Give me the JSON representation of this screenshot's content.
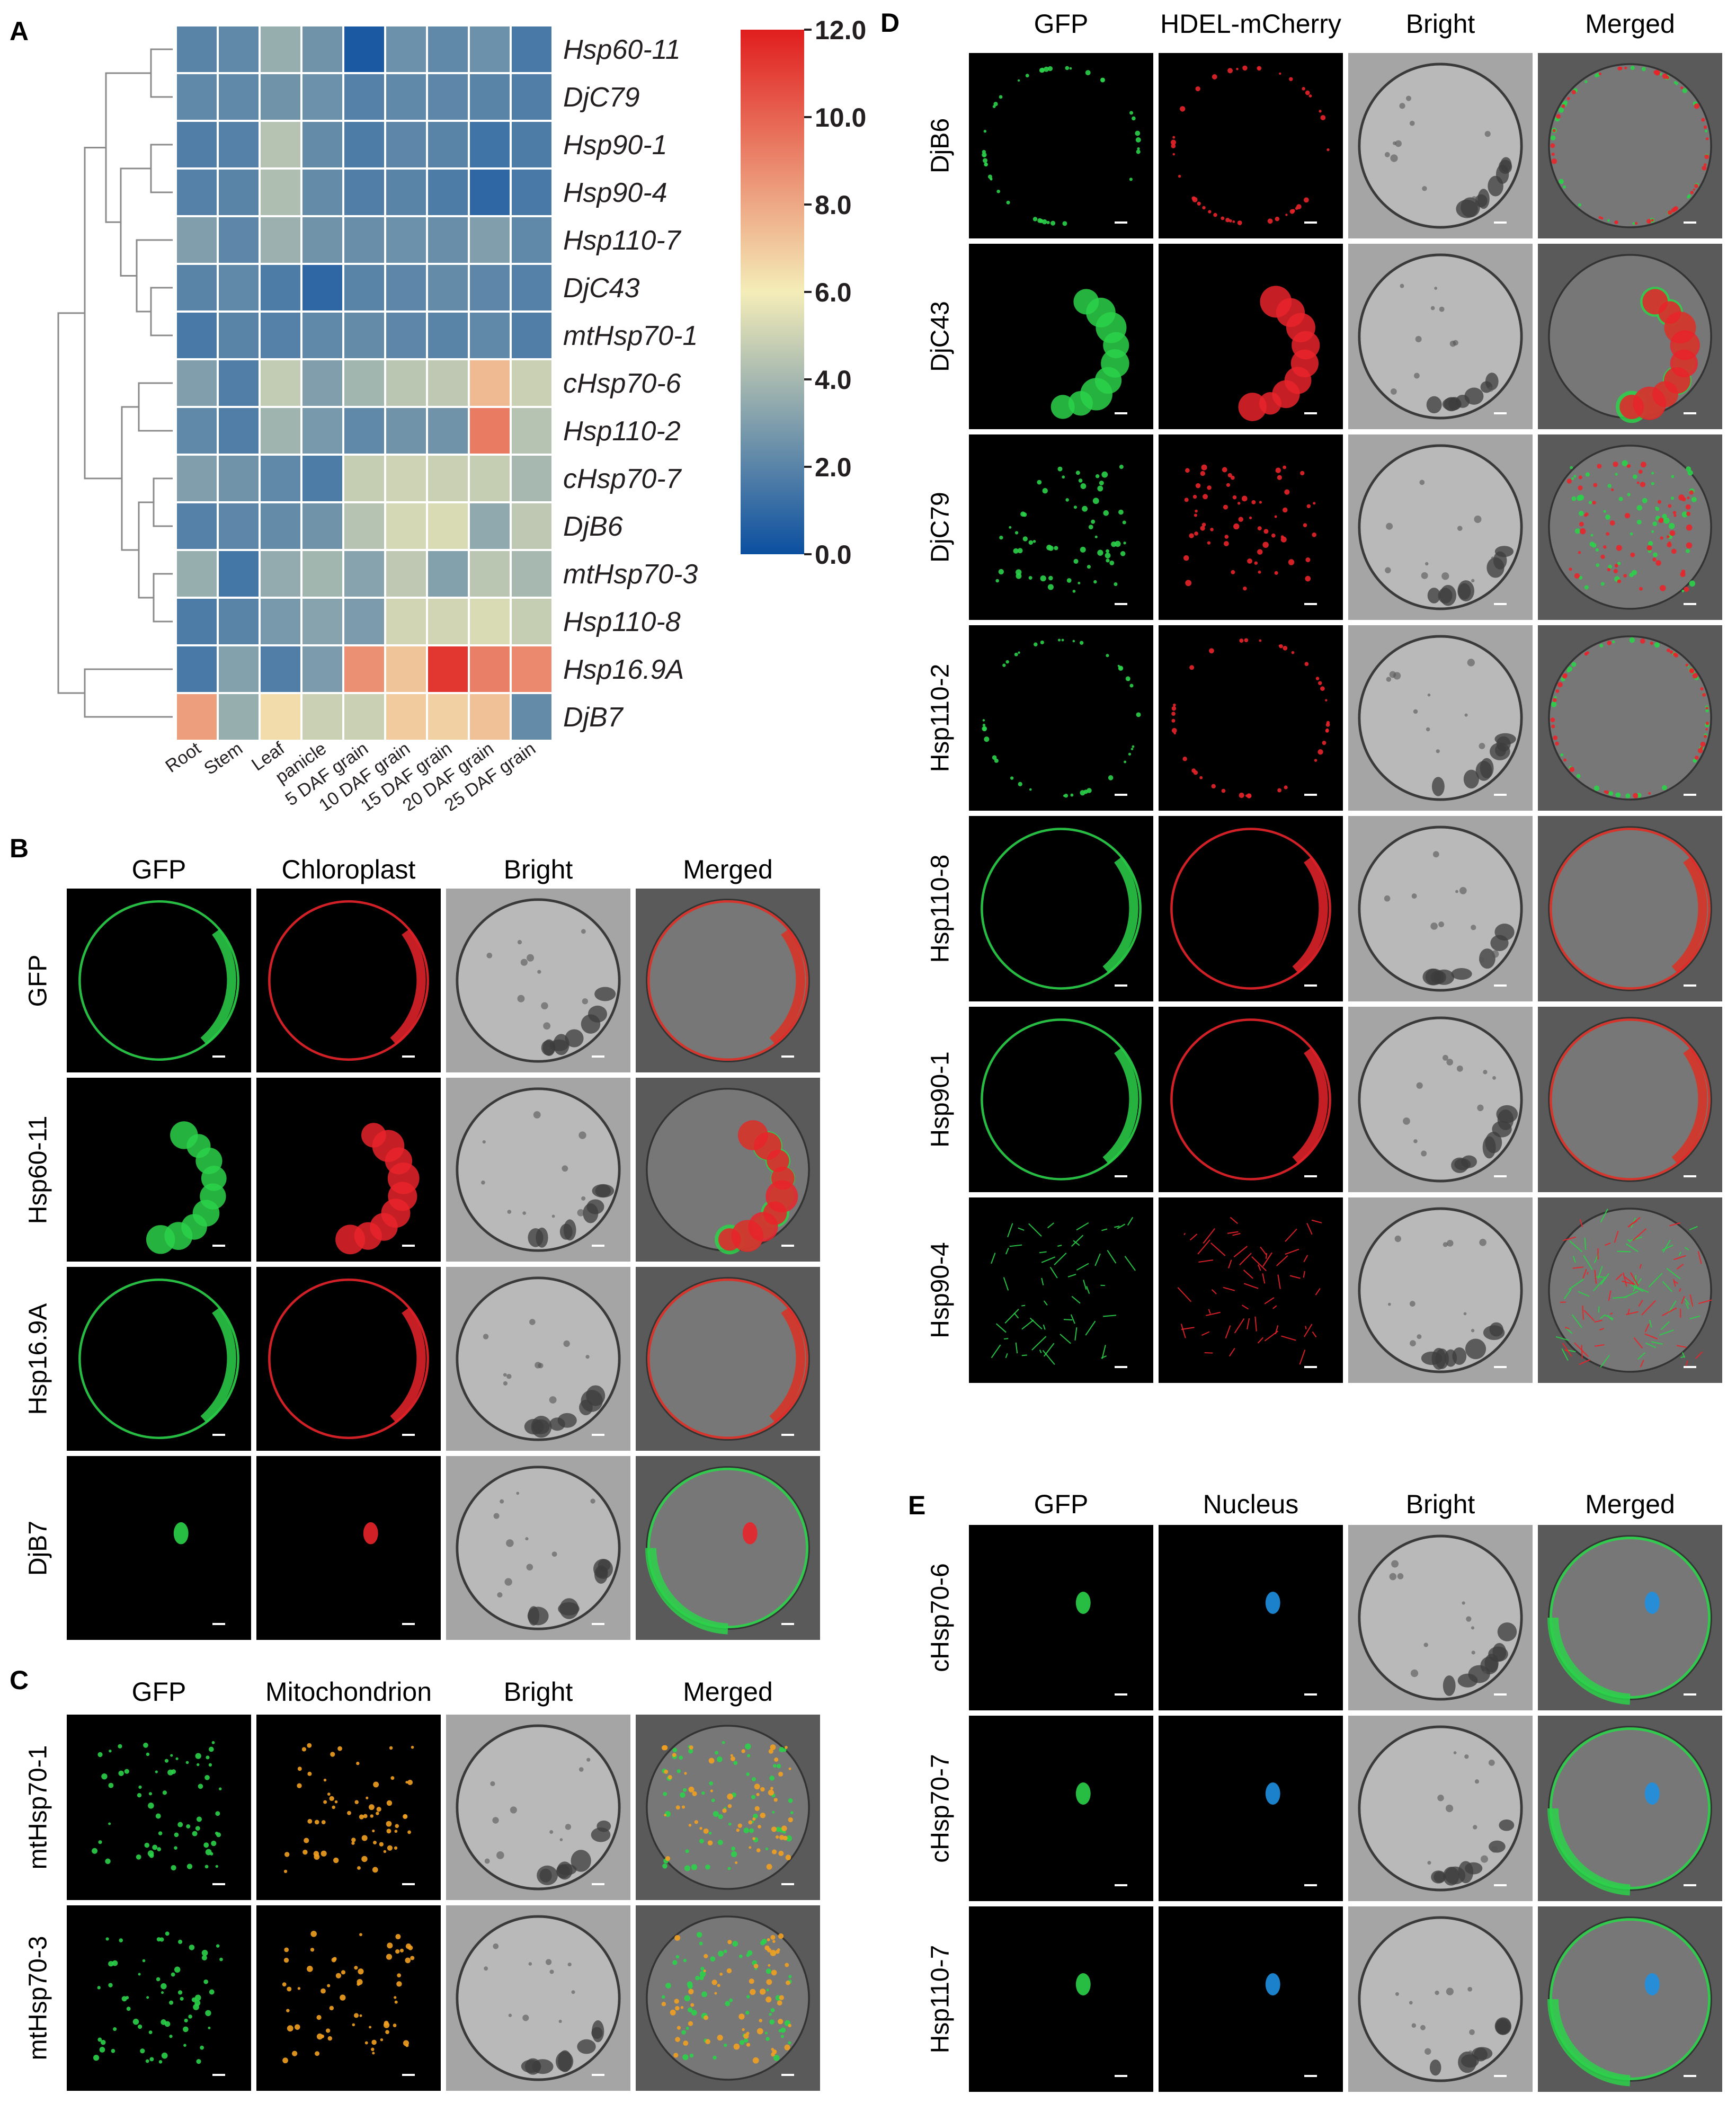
{
  "panels": {
    "A": {
      "letter": "A",
      "genes": [
        "Hsp60-11",
        "DjC79",
        "Hsp90-1",
        "Hsp90-4",
        "Hsp110-7",
        "DjC43",
        "mtHsp70-1",
        "cHsp70-6",
        "Hsp110-2",
        "cHsp70-7",
        "DjB6",
        "mtHsp70-3",
        "Hsp110-8",
        "Hsp16.9A",
        "DjB7"
      ],
      "tissues": [
        "Root",
        "Stem",
        "Leaf",
        "panicle",
        "5 DAF grain",
        "10 DAF grain",
        "15 DAF grain",
        "20 DAF grain",
        "25 DAF grain"
      ],
      "colorbar_ticks": [
        "12.0",
        "10.0",
        "8.0",
        "6.0",
        "4.0",
        "2.0",
        "0.0"
      ],
      "color_scale": {
        "low": "#0b4fa0",
        "mid": "#f4edb8",
        "high": "#e01e1e",
        "min": 0,
        "max": 12
      },
      "values": [
        [
          2.0,
          2.2,
          3.6,
          2.6,
          0.4,
          2.5,
          2.2,
          2.5,
          1.6
        ],
        [
          2.2,
          2.2,
          2.6,
          2.5,
          1.9,
          2.2,
          2.1,
          2.0,
          1.8
        ],
        [
          1.8,
          1.9,
          4.4,
          2.3,
          1.7,
          2.1,
          2.0,
          1.4,
          1.7
        ],
        [
          1.9,
          2.0,
          4.2,
          2.3,
          1.8,
          2.0,
          1.7,
          0.9,
          1.6
        ],
        [
          3.0,
          2.1,
          3.7,
          2.6,
          2.4,
          2.5,
          2.4,
          3.0,
          2.2
        ],
        [
          2.0,
          2.2,
          1.7,
          0.9,
          2.0,
          2.1,
          2.3,
          2.1,
          1.9
        ],
        [
          1.6,
          2.0,
          1.9,
          2.2,
          2.3,
          2.1,
          2.0,
          2.2,
          1.8
        ],
        [
          3.0,
          1.8,
          4.7,
          3.0,
          3.9,
          4.5,
          4.6,
          7.5,
          4.9
        ],
        [
          2.2,
          1.8,
          3.8,
          2.8,
          2.2,
          2.6,
          2.6,
          9.3,
          4.4
        ],
        [
          3.0,
          2.6,
          2.2,
          1.7,
          4.8,
          5.0,
          4.9,
          4.8,
          4.0
        ],
        [
          1.9,
          2.1,
          2.3,
          2.6,
          4.4,
          5.2,
          5.3,
          3.4,
          4.6
        ],
        [
          3.6,
          1.5,
          3.5,
          3.9,
          3.2,
          4.6,
          3.1,
          4.5,
          4.0
        ],
        [
          1.7,
          2.0,
          2.8,
          3.2,
          2.9,
          5.1,
          5.1,
          5.3,
          4.8
        ],
        [
          1.6,
          3.1,
          1.8,
          2.9,
          8.7,
          7.2,
          11.3,
          9.2,
          8.9
        ],
        [
          8.3,
          3.6,
          6.5,
          4.9,
          4.9,
          7.0,
          6.8,
          7.3,
          2.3
        ]
      ]
    },
    "B": {
      "letter": "B",
      "columns": [
        "GFP",
        "Chloroplast",
        "Bright",
        "Merged"
      ],
      "rows": [
        "GFP",
        "Hsp60-11",
        "Hsp16.9A",
        "DjB7"
      ]
    },
    "C": {
      "letter": "C",
      "columns": [
        "GFP",
        "Mitochondrion",
        "Bright",
        "Merged"
      ],
      "rows": [
        "mtHsp70-1",
        "mtHsp70-3"
      ]
    },
    "D": {
      "letter": "D",
      "columns": [
        "GFP",
        "HDEL-mCherry",
        "Bright",
        "Merged"
      ],
      "rows": [
        "DjB6",
        "DjC43",
        "DjC79",
        "Hsp110-2",
        "Hsp110-8",
        "Hsp90-1",
        "Hsp90-4"
      ]
    },
    "E": {
      "letter": "E",
      "columns": [
        "GFP",
        "Nucleus",
        "Bright",
        "Merged"
      ],
      "rows": [
        "cHsp70-6",
        "cHsp70-7",
        "Hsp110-7"
      ]
    }
  },
  "channel_colors": {
    "GFP": "#2bd14a",
    "red": "#e8232a",
    "orange": "#f2a020",
    "blue": "#1e8fe0",
    "bright": "#9a9a9a"
  }
}
